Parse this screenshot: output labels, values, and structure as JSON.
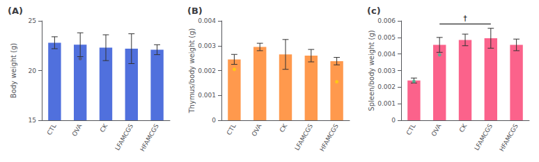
{
  "chart_data": [
    {
      "type": "bar",
      "title": "(A)",
      "ylabel": "Body weight (g)",
      "categories": [
        "CTL",
        "OVA",
        "CK",
        "LFAMCGS",
        "HFAMCGS"
      ],
      "values": [
        22.8,
        22.6,
        22.3,
        22.2,
        22.1
      ],
      "errors": [
        0.6,
        1.2,
        1.3,
        1.5,
        0.5
      ],
      "dots": [
        null,
        21.2,
        null,
        null,
        null
      ],
      "ylim": [
        15,
        25
      ],
      "yticks": [
        15,
        20,
        25
      ],
      "grid": false
    },
    {
      "type": "bar",
      "title": "(B)",
      "ylabel": "Thymus/body weight (g)",
      "categories": [
        "CTL",
        "OVA",
        "CK",
        "LFAMCGS",
        "HFAMCGS"
      ],
      "values": [
        0.00245,
        0.00295,
        0.00265,
        0.0026,
        0.00238
      ],
      "errors": [
        0.0002,
        0.00015,
        0.0006,
        0.00025,
        0.00015
      ],
      "dots": [
        0.00205,
        null,
        null,
        null,
        0.00155
      ],
      "ylim": [
        0,
        0.004
      ],
      "yticks": [
        0,
        0.001,
        0.002,
        0.003,
        0.004
      ],
      "grid": false
    },
    {
      "type": "bar",
      "title": "(c)",
      "ylabel": "Spleen/body weight (g)",
      "categories": [
        "CTL",
        "OVA",
        "CK",
        "LFAMCGS",
        "HFAMCGS"
      ],
      "values": [
        0.0024,
        0.00455,
        0.00485,
        0.00495,
        0.00455
      ],
      "errors": [
        0.00015,
        0.00045,
        0.00035,
        0.0006,
        0.00035
      ],
      "dots": [
        0.00235,
        0.00395,
        null,
        null,
        null
      ],
      "ylim": [
        0,
        0.006
      ],
      "yticks": [
        0,
        0.001,
        0.002,
        0.003,
        0.004,
        0.005,
        0.006
      ],
      "grid": false,
      "annotations": [
        {
          "text": "†",
          "x1": "OVA",
          "x2": "LFAMCGS",
          "y": 0.00582
        }
      ]
    }
  ]
}
